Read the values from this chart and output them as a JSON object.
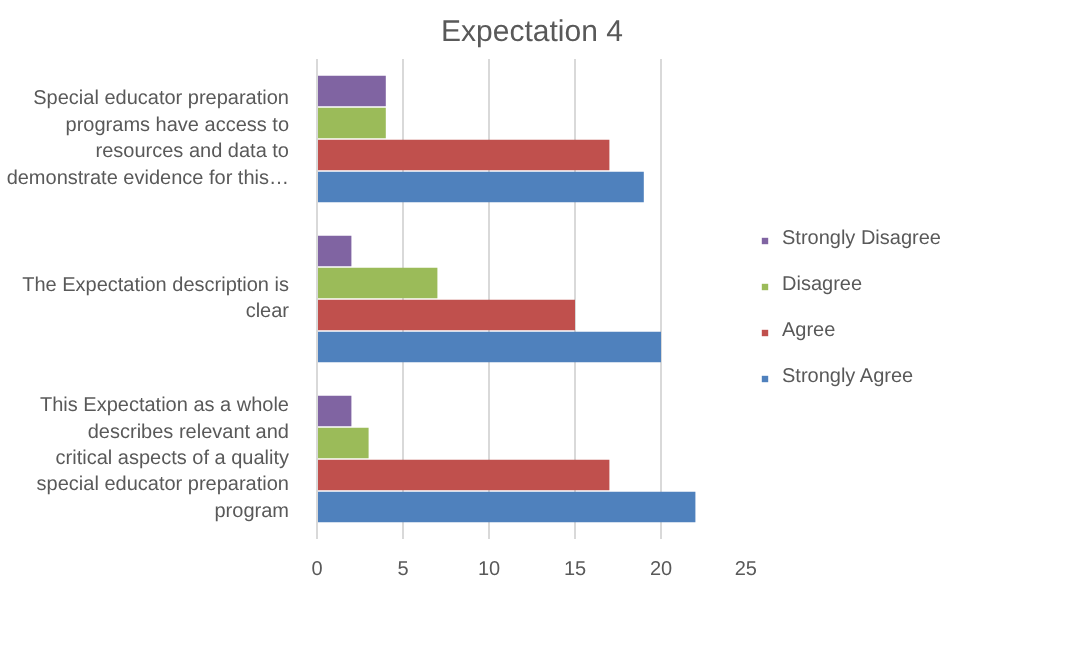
{
  "chart_data": {
    "type": "bar",
    "orientation": "horizontal",
    "title": "Expectation 4",
    "categories": [
      "Special educator preparation programs have access to resources and data to demonstrate evidence for this…",
      "The Expectation description is clear",
      "This Expectation as a whole describes relevant and critical aspects of a quality special educator preparation program"
    ],
    "series": [
      {
        "name": "Strongly Disagree",
        "color": "#8064a2",
        "values": [
          4,
          2,
          2
        ]
      },
      {
        "name": "Disagree",
        "color": "#9bbb59",
        "values": [
          4,
          7,
          3
        ]
      },
      {
        "name": "Agree",
        "color": "#c0504d",
        "values": [
          17,
          15,
          17
        ]
      },
      {
        "name": "Strongly Agree",
        "color": "#4f81bd",
        "values": [
          19,
          20,
          22
        ]
      }
    ],
    "xlim": [
      0,
      25
    ],
    "xticks": [
      0,
      5,
      10,
      15,
      20,
      25
    ],
    "grid": "x",
    "legend": "right"
  }
}
